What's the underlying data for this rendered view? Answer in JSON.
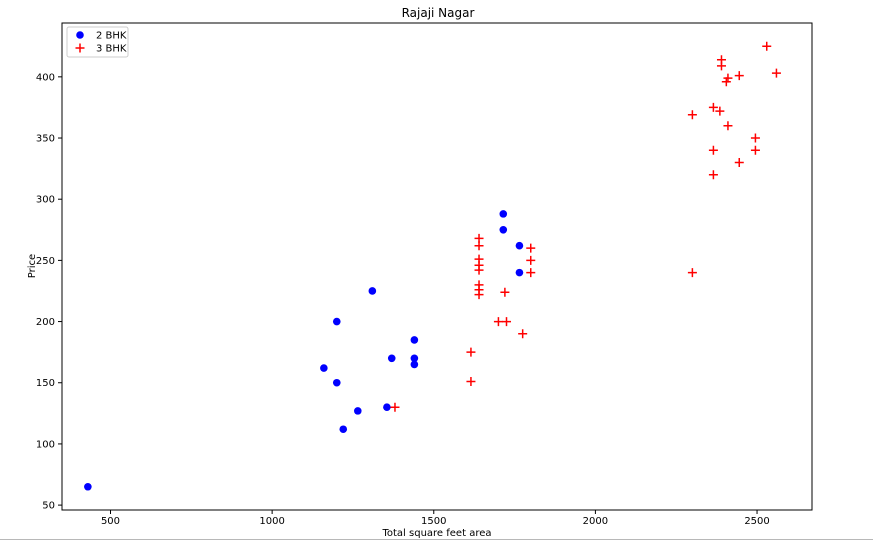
{
  "chart_data": {
    "type": "scatter",
    "title": "Rajaji Nagar",
    "xlabel": "Total square feet area",
    "ylabel": "Price",
    "xlim": [
      350,
      2670
    ],
    "ylim": [
      46,
      444
    ],
    "xticks": [
      500,
      1000,
      1500,
      2000,
      2500
    ],
    "yticks": [
      50,
      100,
      150,
      200,
      250,
      300,
      350,
      400
    ],
    "grid": false,
    "legend_position": "top-left",
    "series": [
      {
        "name": "2 BHK",
        "marker": "circle",
        "color": "#0000ff",
        "points": [
          [
            430,
            65
          ],
          [
            1160,
            162
          ],
          [
            1200,
            200
          ],
          [
            1200,
            150
          ],
          [
            1220,
            112
          ],
          [
            1265,
            127
          ],
          [
            1310,
            225
          ],
          [
            1355,
            130
          ],
          [
            1370,
            170
          ],
          [
            1440,
            185
          ],
          [
            1440,
            170
          ],
          [
            1440,
            165
          ],
          [
            1715,
            288
          ],
          [
            1715,
            275
          ],
          [
            1765,
            262
          ],
          [
            1765,
            240
          ]
        ]
      },
      {
        "name": "3 BHK",
        "marker": "plus",
        "color": "#ff0000",
        "points": [
          [
            1380,
            130
          ],
          [
            1615,
            175
          ],
          [
            1615,
            151
          ],
          [
            1640,
            268
          ],
          [
            1640,
            262
          ],
          [
            1640,
            251
          ],
          [
            1640,
            246
          ],
          [
            1640,
            242
          ],
          [
            1640,
            230
          ],
          [
            1640,
            226
          ],
          [
            1640,
            222
          ],
          [
            1700,
            200
          ],
          [
            1720,
            224
          ],
          [
            1725,
            200
          ],
          [
            1775,
            190
          ],
          [
            1800,
            260
          ],
          [
            1800,
            250
          ],
          [
            1800,
            240
          ],
          [
            2300,
            369
          ],
          [
            2300,
            240
          ],
          [
            2365,
            375
          ],
          [
            2365,
            340
          ],
          [
            2365,
            320
          ],
          [
            2385,
            372
          ],
          [
            2390,
            414
          ],
          [
            2390,
            409
          ],
          [
            2405,
            396
          ],
          [
            2410,
            399
          ],
          [
            2410,
            360
          ],
          [
            2445,
            401
          ],
          [
            2445,
            330
          ],
          [
            2495,
            350
          ],
          [
            2495,
            340
          ],
          [
            2530,
            425
          ],
          [
            2560,
            403
          ]
        ]
      }
    ]
  }
}
